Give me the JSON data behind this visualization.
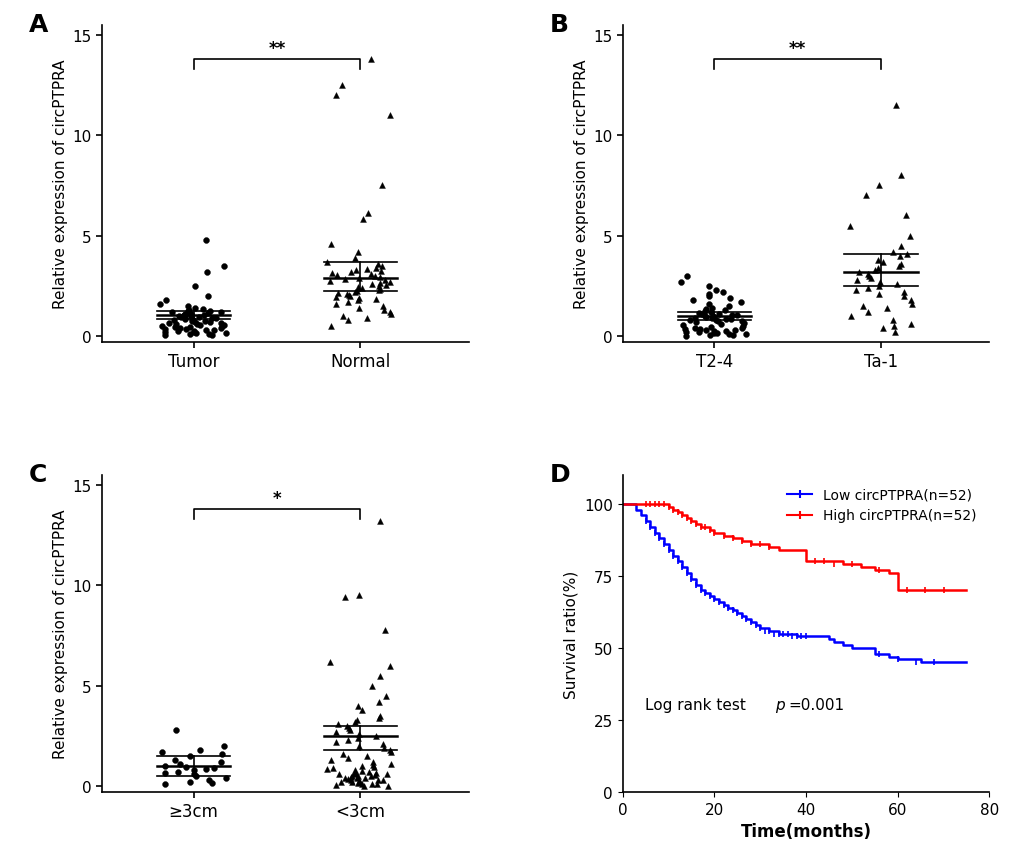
{
  "panel_A": {
    "label": "A",
    "group1_label": "Tumor",
    "group2_label": "Normal",
    "group1_marker": "o",
    "group2_marker": "^",
    "group1_mean": 1.05,
    "group1_ci_low": 0.85,
    "group1_ci_high": 1.25,
    "group2_mean": 2.9,
    "group2_ci_low": 2.25,
    "group2_ci_high": 3.7,
    "significance": "**",
    "ylabel": "Relative expression of circPTPRA",
    "ylim": [
      -0.3,
      15.5
    ],
    "yticks": [
      0,
      5,
      10,
      15
    ],
    "group1_points": [
      0.02,
      0.05,
      0.08,
      0.1,
      0.12,
      0.15,
      0.18,
      0.2,
      0.22,
      0.25,
      0.28,
      0.3,
      0.32,
      0.35,
      0.38,
      0.4,
      0.42,
      0.45,
      0.48,
      0.5,
      0.52,
      0.55,
      0.58,
      0.6,
      0.62,
      0.65,
      0.68,
      0.7,
      0.72,
      0.75,
      0.78,
      0.8,
      0.82,
      0.85,
      0.87,
      0.88,
      0.9,
      0.92,
      0.95,
      0.97,
      1.0,
      1.02,
      1.05,
      1.08,
      1.1,
      1.12,
      1.15,
      1.18,
      1.2,
      1.22,
      1.25,
      1.3,
      1.35,
      1.4,
      1.5,
      1.6,
      1.8,
      2.0,
      2.5,
      3.2,
      3.5,
      4.8
    ],
    "group2_points": [
      0.5,
      0.8,
      0.9,
      1.0,
      1.1,
      1.2,
      1.3,
      1.4,
      1.5,
      1.6,
      1.7,
      1.8,
      1.85,
      1.9,
      1.95,
      2.0,
      2.05,
      2.1,
      2.15,
      2.2,
      2.25,
      2.3,
      2.35,
      2.4,
      2.45,
      2.5,
      2.55,
      2.6,
      2.65,
      2.7,
      2.75,
      2.8,
      2.85,
      2.9,
      2.95,
      3.0,
      3.05,
      3.1,
      3.15,
      3.2,
      3.25,
      3.3,
      3.35,
      3.4,
      3.5,
      3.6,
      3.7,
      3.9,
      4.2,
      4.6,
      5.8,
      6.1,
      7.5,
      11.0,
      12.0,
      12.5,
      13.8
    ]
  },
  "panel_B": {
    "label": "B",
    "group1_label": "T2-4",
    "group2_label": "Ta-1",
    "group1_marker": "o",
    "group2_marker": "^",
    "group1_mean": 1.0,
    "group1_ci_low": 0.8,
    "group1_ci_high": 1.2,
    "group2_mean": 3.2,
    "group2_ci_low": 2.5,
    "group2_ci_high": 4.1,
    "significance": "**",
    "ylabel": "Relative expression of circPTPRA",
    "ylim": [
      -0.3,
      15.5
    ],
    "yticks": [
      0,
      5,
      10,
      15
    ],
    "group1_points": [
      0.0,
      0.02,
      0.05,
      0.08,
      0.1,
      0.12,
      0.15,
      0.18,
      0.2,
      0.22,
      0.25,
      0.28,
      0.3,
      0.32,
      0.35,
      0.38,
      0.4,
      0.45,
      0.5,
      0.55,
      0.6,
      0.65,
      0.7,
      0.72,
      0.75,
      0.78,
      0.8,
      0.82,
      0.85,
      0.88,
      0.9,
      0.92,
      0.95,
      0.98,
      1.0,
      1.02,
      1.05,
      1.08,
      1.1,
      1.15,
      1.2,
      1.25,
      1.3,
      1.35,
      1.4,
      1.5,
      1.6,
      1.7,
      1.8,
      1.9,
      2.0,
      2.1,
      2.2,
      2.3,
      2.5,
      2.7,
      3.0
    ],
    "group2_points": [
      0.2,
      0.4,
      0.5,
      0.6,
      0.8,
      1.0,
      1.2,
      1.4,
      1.5,
      1.6,
      1.8,
      2.0,
      2.1,
      2.2,
      2.3,
      2.4,
      2.5,
      2.6,
      2.7,
      2.8,
      2.9,
      3.0,
      3.1,
      3.2,
      3.3,
      3.4,
      3.5,
      3.6,
      3.7,
      3.8,
      4.0,
      4.1,
      4.2,
      4.5,
      5.0,
      5.5,
      6.0,
      7.0,
      7.5,
      8.0,
      11.5
    ]
  },
  "panel_C": {
    "label": "C",
    "group1_label": "≥3cm",
    "group2_label": "<3cm",
    "group1_marker": "o",
    "group2_marker": "^",
    "group1_mean": 1.0,
    "group1_ci_low": 0.5,
    "group1_ci_high": 1.5,
    "group2_mean": 2.5,
    "group2_ci_low": 1.8,
    "group2_ci_high": 3.0,
    "significance": "*",
    "ylabel": "Relative expression of circPTPRA",
    "ylim": [
      -0.3,
      15.5
    ],
    "yticks": [
      0,
      5,
      10,
      15
    ],
    "group1_points": [
      0.1,
      0.15,
      0.2,
      0.3,
      0.4,
      0.5,
      0.6,
      0.65,
      0.7,
      0.8,
      0.85,
      0.9,
      0.95,
      1.0,
      1.1,
      1.2,
      1.3,
      1.5,
      1.6,
      1.7,
      1.8,
      2.0,
      2.8
    ],
    "group2_points": [
      0.0,
      0.02,
      0.05,
      0.08,
      0.1,
      0.12,
      0.15,
      0.18,
      0.2,
      0.22,
      0.25,
      0.28,
      0.3,
      0.32,
      0.35,
      0.38,
      0.4,
      0.42,
      0.45,
      0.48,
      0.5,
      0.52,
      0.55,
      0.58,
      0.6,
      0.62,
      0.65,
      0.68,
      0.7,
      0.72,
      0.75,
      0.8,
      0.85,
      0.9,
      0.95,
      1.0,
      1.05,
      1.1,
      1.2,
      1.3,
      1.4,
      1.5,
      1.6,
      1.7,
      1.8,
      1.9,
      2.0,
      2.1,
      2.2,
      2.3,
      2.4,
      2.5,
      2.6,
      2.7,
      2.8,
      2.9,
      3.0,
      3.1,
      3.2,
      3.3,
      3.4,
      3.5,
      3.8,
      4.0,
      4.2,
      4.5,
      5.0,
      5.5,
      6.0,
      6.2,
      7.8,
      9.4,
      9.5,
      13.2
    ]
  },
  "panel_D": {
    "label": "D",
    "xlabel": "Time(months)",
    "ylabel": "Survival ratio(%)",
    "xlim": [
      0,
      80
    ],
    "ylim": [
      0,
      110
    ],
    "yticks": [
      0,
      25,
      50,
      75,
      100
    ],
    "xticks": [
      0,
      20,
      40,
      60,
      80
    ],
    "low_label": "Low circPTPRA(n=52)",
    "high_label": "High circPTPRA(n=52)",
    "low_color": "#0000FF",
    "high_color": "#FF0000",
    "annotation_normal": "Log rank test  ",
    "annotation_italic": "p",
    "annotation_end": "=0.001",
    "low_times": [
      0,
      2,
      3,
      4,
      5,
      6,
      7,
      8,
      9,
      10,
      11,
      12,
      13,
      14,
      15,
      16,
      17,
      18,
      19,
      20,
      21,
      22,
      23,
      24,
      25,
      26,
      27,
      28,
      29,
      30,
      32,
      34,
      36,
      38,
      40,
      42,
      44,
      45,
      46,
      48,
      50,
      52,
      55,
      58,
      60,
      65,
      70,
      75
    ],
    "low_survival": [
      100,
      100,
      98,
      96,
      94,
      92,
      90,
      88,
      86,
      84,
      82,
      80,
      78,
      76,
      74,
      72,
      70,
      69,
      68,
      67,
      66,
      65,
      64,
      63,
      62,
      61,
      60,
      59,
      58,
      57,
      56,
      55,
      55,
      54,
      54,
      54,
      54,
      53,
      52,
      51,
      50,
      50,
      48,
      47,
      46,
      45,
      45,
      45
    ],
    "high_times": [
      0,
      4,
      5,
      6,
      7,
      8,
      9,
      10,
      11,
      12,
      13,
      14,
      15,
      16,
      17,
      18,
      19,
      20,
      22,
      24,
      26,
      28,
      30,
      32,
      34,
      36,
      38,
      40,
      42,
      44,
      45,
      48,
      50,
      52,
      55,
      58,
      60,
      65,
      70,
      75
    ],
    "high_survival": [
      100,
      100,
      100,
      100,
      100,
      100,
      100,
      99,
      98,
      97,
      96,
      95,
      94,
      93,
      92,
      92,
      91,
      90,
      89,
      88,
      87,
      86,
      86,
      85,
      84,
      84,
      84,
      80,
      80,
      80,
      80,
      79,
      79,
      78,
      77,
      76,
      70,
      70,
      70,
      70
    ],
    "low_censors_x": [
      5,
      6,
      7,
      8,
      9,
      10,
      11,
      12,
      13,
      14,
      15,
      16,
      17,
      18,
      19,
      20,
      21,
      22,
      23,
      24,
      25,
      26,
      27,
      28,
      29,
      30,
      31,
      32,
      33,
      34,
      35,
      36,
      37,
      38,
      39,
      40,
      56,
      60,
      64,
      68
    ],
    "low_censors_y": [
      94,
      92,
      90,
      88,
      86,
      84,
      82,
      80,
      78,
      76,
      74,
      72,
      70,
      69,
      68,
      67,
      66,
      65,
      64,
      63,
      62,
      61,
      60,
      59,
      58,
      57,
      56,
      56,
      55,
      55,
      55,
      55,
      54,
      54,
      54,
      54,
      48,
      46,
      45,
      45
    ],
    "high_censors_x": [
      5,
      6,
      7,
      8,
      9,
      10,
      11,
      12,
      13,
      14,
      15,
      16,
      17,
      18,
      19,
      20,
      22,
      24,
      26,
      28,
      30,
      32,
      42,
      44,
      46,
      50,
      56,
      62,
      66,
      70
    ],
    "high_censors_y": [
      100,
      100,
      100,
      100,
      100,
      99,
      98,
      97,
      96,
      95,
      94,
      93,
      92,
      92,
      91,
      90,
      89,
      88,
      87,
      86,
      86,
      85,
      80,
      80,
      79,
      79,
      77,
      70,
      70,
      70
    ]
  },
  "marker_size": 18,
  "marker_color": "black",
  "line_color": "black",
  "font_size": 11,
  "label_font_size": 14,
  "panel_label_font_size": 18,
  "background_color": "#ffffff"
}
